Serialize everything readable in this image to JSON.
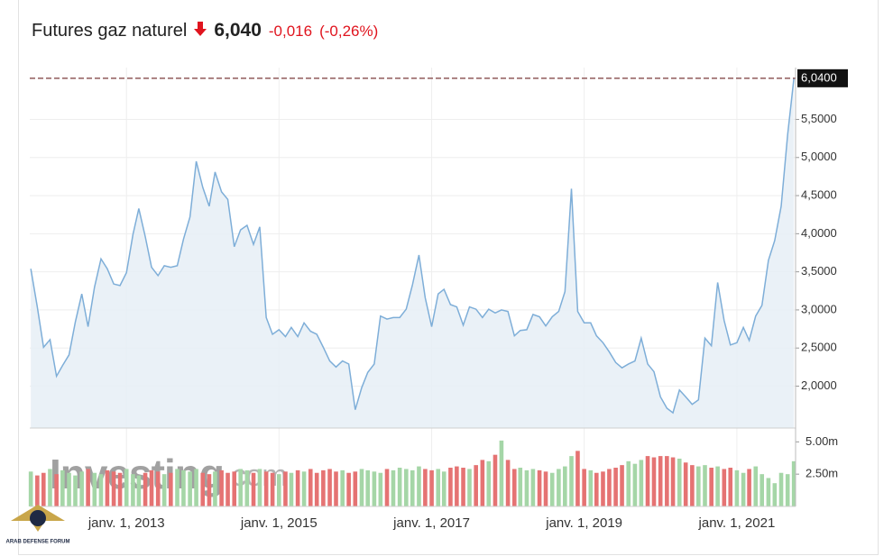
{
  "header": {
    "title": "Futures gaz naturel",
    "price": "6,040",
    "change": "-0,016",
    "change_pct": "(-0,26%)"
  },
  "watermark": {
    "brand": "Investing",
    "suffix": ".com"
  },
  "logo": {
    "text": "ARAB DEFENSE FORUM"
  },
  "chart_data": [
    {
      "type": "area",
      "color": "#7eaed8",
      "fill": "#e6eef6",
      "grid": true,
      "xlim": [
        "2011-09-26",
        "2021-10-09"
      ],
      "xticks": [
        {
          "value": "2013-01-01",
          "label": "janv. 1, 2013"
        },
        {
          "value": "2015-01-01",
          "label": "janv. 1, 2015"
        },
        {
          "value": "2017-01-01",
          "label": "janv. 1, 2017"
        },
        {
          "value": "2019-01-01",
          "label": "janv. 1, 2019"
        },
        {
          "value": "2021-01-01",
          "label": "janv. 1, 2021"
        }
      ],
      "ylim": [
        1.45,
        6.18
      ],
      "yticks": [
        {
          "value": 2,
          "label": "2,0000"
        },
        {
          "value": 2.5,
          "label": "2,5000"
        },
        {
          "value": 3,
          "label": "3,0000"
        },
        {
          "value": 3.5,
          "label": "3,5000"
        },
        {
          "value": 4,
          "label": "4,0000"
        },
        {
          "value": 4.5,
          "label": "4,5000"
        },
        {
          "value": 5,
          "label": "5,0000"
        },
        {
          "value": 5.5,
          "label": "5,5000"
        }
      ],
      "price_line": {
        "value": 6.04,
        "label": "6,0400"
      },
      "x": [
        "2011-10-01",
        "2011-11-01",
        "2011-12-01",
        "2012-01-01",
        "2012-02-01",
        "2012-03-01",
        "2012-04-01",
        "2012-05-01",
        "2012-06-01",
        "2012-07-01",
        "2012-08-01",
        "2012-09-01",
        "2012-10-01",
        "2012-11-01",
        "2012-12-01",
        "2013-01-01",
        "2013-02-01",
        "2013-03-01",
        "2013-04-01",
        "2013-05-01",
        "2013-06-01",
        "2013-07-01",
        "2013-08-01",
        "2013-09-01",
        "2013-10-01",
        "2013-11-01",
        "2013-12-01",
        "2014-01-01",
        "2014-02-01",
        "2014-03-01",
        "2014-04-01",
        "2014-05-01",
        "2014-06-01",
        "2014-07-01",
        "2014-08-01",
        "2014-09-01",
        "2014-10-01",
        "2014-11-01",
        "2014-12-01",
        "2015-01-01",
        "2015-02-01",
        "2015-03-01",
        "2015-04-01",
        "2015-05-01",
        "2015-06-01",
        "2015-07-01",
        "2015-08-01",
        "2015-09-01",
        "2015-10-01",
        "2015-11-01",
        "2015-12-01",
        "2016-01-01",
        "2016-02-01",
        "2016-03-01",
        "2016-04-01",
        "2016-05-01",
        "2016-06-01",
        "2016-07-01",
        "2016-08-01",
        "2016-09-01",
        "2016-10-01",
        "2016-11-01",
        "2016-12-01",
        "2017-01-01",
        "2017-02-01",
        "2017-03-01",
        "2017-04-01",
        "2017-05-01",
        "2017-06-01",
        "2017-07-01",
        "2017-08-01",
        "2017-09-01",
        "2017-10-01",
        "2017-11-01",
        "2017-12-01",
        "2018-01-01",
        "2018-02-01",
        "2018-03-01",
        "2018-04-01",
        "2018-05-01",
        "2018-06-01",
        "2018-07-01",
        "2018-08-01",
        "2018-09-01",
        "2018-10-01",
        "2018-11-01",
        "2018-12-01",
        "2019-01-01",
        "2019-02-01",
        "2019-03-01",
        "2019-04-01",
        "2019-05-01",
        "2019-06-01",
        "2019-07-01",
        "2019-08-01",
        "2019-09-01",
        "2019-10-01",
        "2019-11-01",
        "2019-12-01",
        "2020-01-01",
        "2020-02-01",
        "2020-03-01",
        "2020-04-01",
        "2020-05-01",
        "2020-06-01",
        "2020-07-01",
        "2020-08-01",
        "2020-09-01",
        "2020-10-01",
        "2020-11-01",
        "2020-12-01",
        "2021-01-01",
        "2021-02-01",
        "2021-03-01",
        "2021-04-01",
        "2021-05-01",
        "2021-06-01",
        "2021-07-01",
        "2021-08-01",
        "2021-09-01",
        "2021-10-01"
      ],
      "values": [
        3.54,
        3.04,
        2.51,
        2.61,
        2.13,
        2.27,
        2.41,
        2.84,
        3.21,
        2.78,
        3.3,
        3.67,
        3.54,
        3.34,
        3.32,
        3.49,
        3.99,
        4.33,
        3.96,
        3.56,
        3.45,
        3.58,
        3.56,
        3.58,
        3.93,
        4.22,
        4.95,
        4.61,
        4.36,
        4.81,
        4.55,
        4.45,
        3.83,
        4.05,
        4.11,
        3.86,
        4.09,
        2.9,
        2.68,
        2.74,
        2.65,
        2.77,
        2.65,
        2.83,
        2.72,
        2.68,
        2.51,
        2.33,
        2.25,
        2.33,
        2.29,
        1.69,
        1.98,
        2.18,
        2.29,
        2.92,
        2.88,
        2.9,
        2.9,
        3.01,
        3.33,
        3.72,
        3.16,
        2.78,
        3.21,
        3.27,
        3.07,
        3.04,
        2.8,
        3.04,
        3.01,
        2.9,
        3.01,
        2.96,
        3.0,
        2.98,
        2.66,
        2.73,
        2.74,
        2.94,
        2.91,
        2.79,
        2.91,
        2.98,
        3.24,
        4.59,
        2.98,
        2.83,
        2.83,
        2.66,
        2.57,
        2.45,
        2.31,
        2.24,
        2.29,
        2.33,
        2.63,
        2.29,
        2.19,
        1.86,
        1.71,
        1.65,
        1.95,
        1.86,
        1.76,
        1.82,
        2.63,
        2.53,
        3.36,
        2.86,
        2.54,
        2.57,
        2.77,
        2.6,
        2.92,
        3.06,
        3.65,
        3.91,
        4.36,
        5.3,
        6.04
      ]
    },
    {
      "type": "volume",
      "up_color": "#a5d6a7",
      "down_color": "#e57373",
      "ylim": [
        0,
        6.07
      ],
      "yticks": [
        {
          "value": 2.5,
          "label": "2.50m"
        },
        {
          "value": 5,
          "label": "5.00m"
        }
      ],
      "values": [
        2.7,
        2.4,
        2.6,
        2.9,
        2.5,
        2.8,
        2.6,
        2.4,
        2.7,
        2.9,
        2.6,
        2.5,
        2.8,
        2.7,
        2.6,
        2.9,
        2.5,
        2.4,
        2.6,
        2.8,
        2.7,
        2.5,
        2.6,
        2.9,
        2.8,
        2.7,
        2.9,
        2.6,
        2.5,
        2.7,
        2.8,
        2.6,
        2.7,
        2.9,
        2.8,
        2.6,
        2.9,
        2.7,
        2.6,
        2.5,
        2.7,
        2.6,
        2.8,
        2.7,
        2.9,
        2.6,
        2.8,
        2.9,
        2.7,
        2.8,
        2.6,
        2.7,
        2.9,
        2.8,
        2.7,
        2.6,
        2.9,
        2.8,
        3.0,
        2.9,
        2.8,
        3.1,
        2.9,
        2.8,
        2.9,
        2.7,
        3.0,
        3.1,
        3.0,
        2.9,
        3.2,
        3.6,
        3.5,
        4.0,
        5.1,
        3.6,
        2.9,
        3.0,
        2.8,
        2.9,
        2.8,
        2.7,
        2.6,
        2.9,
        3.1,
        3.9,
        4.3,
        2.9,
        2.8,
        2.6,
        2.7,
        2.9,
        3.0,
        3.2,
        3.5,
        3.3,
        3.6,
        3.9,
        3.8,
        3.9,
        3.9,
        3.8,
        3.7,
        3.4,
        3.2,
        3.1,
        3.2,
        3.0,
        3.1,
        2.9,
        3.0,
        2.8,
        2.6,
        2.9,
        3.1,
        2.5,
        2.2,
        1.8,
        2.6,
        2.5,
        3.5
      ]
    }
  ]
}
